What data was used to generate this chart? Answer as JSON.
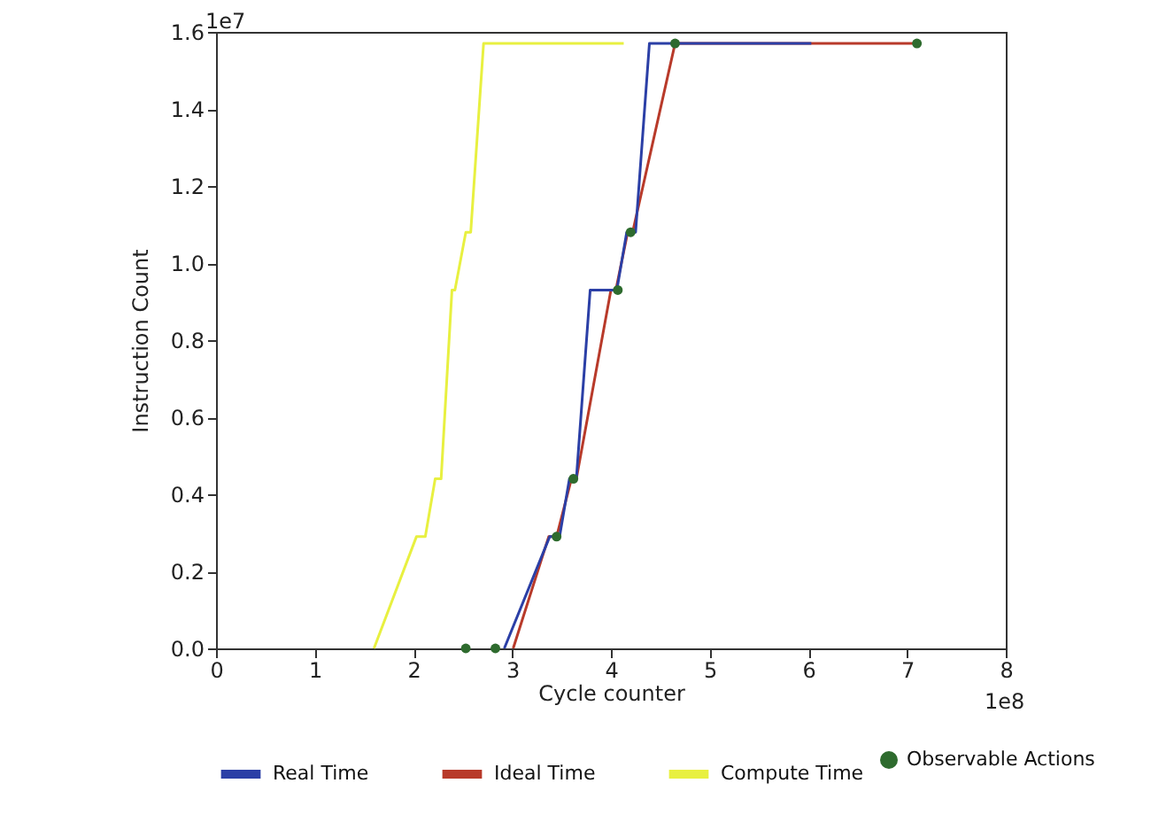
{
  "chart_data": {
    "type": "line",
    "xlabel": "Cycle counter",
    "ylabel": "Instruction Count",
    "xlim": [
      0,
      8
    ],
    "xticks": [
      0,
      1,
      2,
      3,
      4,
      5,
      6,
      7,
      8
    ],
    "ylim": [
      0,
      1.6
    ],
    "yticks": [
      {
        "value": 0,
        "label": "0.0"
      },
      {
        "value": 0.2,
        "label": "0.2"
      },
      {
        "value": 0.4,
        "label": "0.4"
      },
      {
        "value": 0.6,
        "label": "0.6"
      },
      {
        "value": 0.8,
        "label": "0.8"
      },
      {
        "value": 1.0,
        "label": "1.0"
      },
      {
        "value": 1.2,
        "label": "1.2"
      },
      {
        "value": 1.4,
        "label": "1.4"
      },
      {
        "value": 1.6,
        "label": "1.6"
      }
    ],
    "annotations": [
      "1e8",
      "1e7"
    ],
    "grid": false,
    "legend": "bottom",
    "marker": "none",
    "line_style": "solid",
    "series": [
      {
        "name": "Real Time",
        "type": "line",
        "color": "#2b3fa6",
        "x": [
          2.92,
          3.38,
          3.48,
          3.58,
          3.65,
          3.79,
          3.79,
          4.06,
          4.16,
          4.25,
          4.39,
          6.03
        ],
        "values": [
          0,
          0.29,
          0.29,
          0.44,
          0.44,
          0.93,
          0.93,
          0.93,
          1.08,
          1.08,
          1.57,
          1.57
        ]
      },
      {
        "name": "Ideal Time",
        "type": "line",
        "color": "#b83a2a",
        "x": [
          3.01,
          3.37,
          3.45,
          3.6,
          3.65,
          4.0,
          4.05,
          4.17,
          4.22,
          4.65,
          7.1
        ],
        "values": [
          0,
          0.29,
          0.29,
          0.44,
          0.44,
          0.93,
          0.93,
          1.08,
          1.08,
          1.57,
          1.57
        ]
      },
      {
        "name": "Compute Time",
        "type": "line",
        "color": "#e8f040",
        "x": [
          1.6,
          2.03,
          2.12,
          2.22,
          2.28,
          2.39,
          2.42,
          2.53,
          2.58,
          2.71,
          4.13
        ],
        "values": [
          0,
          0.29,
          0.29,
          0.44,
          0.44,
          0.93,
          0.93,
          1.08,
          1.08,
          1.57,
          1.57
        ]
      },
      {
        "name": "Observable Actions",
        "type": "scatter",
        "marker": "circle",
        "color": "#2e6b2e",
        "x": [
          2.53,
          2.83,
          3.45,
          3.62,
          4.07,
          4.2,
          4.65,
          7.1
        ],
        "values": [
          0,
          0,
          0.29,
          0.44,
          0.93,
          1.08,
          1.57,
          1.57
        ]
      }
    ]
  }
}
